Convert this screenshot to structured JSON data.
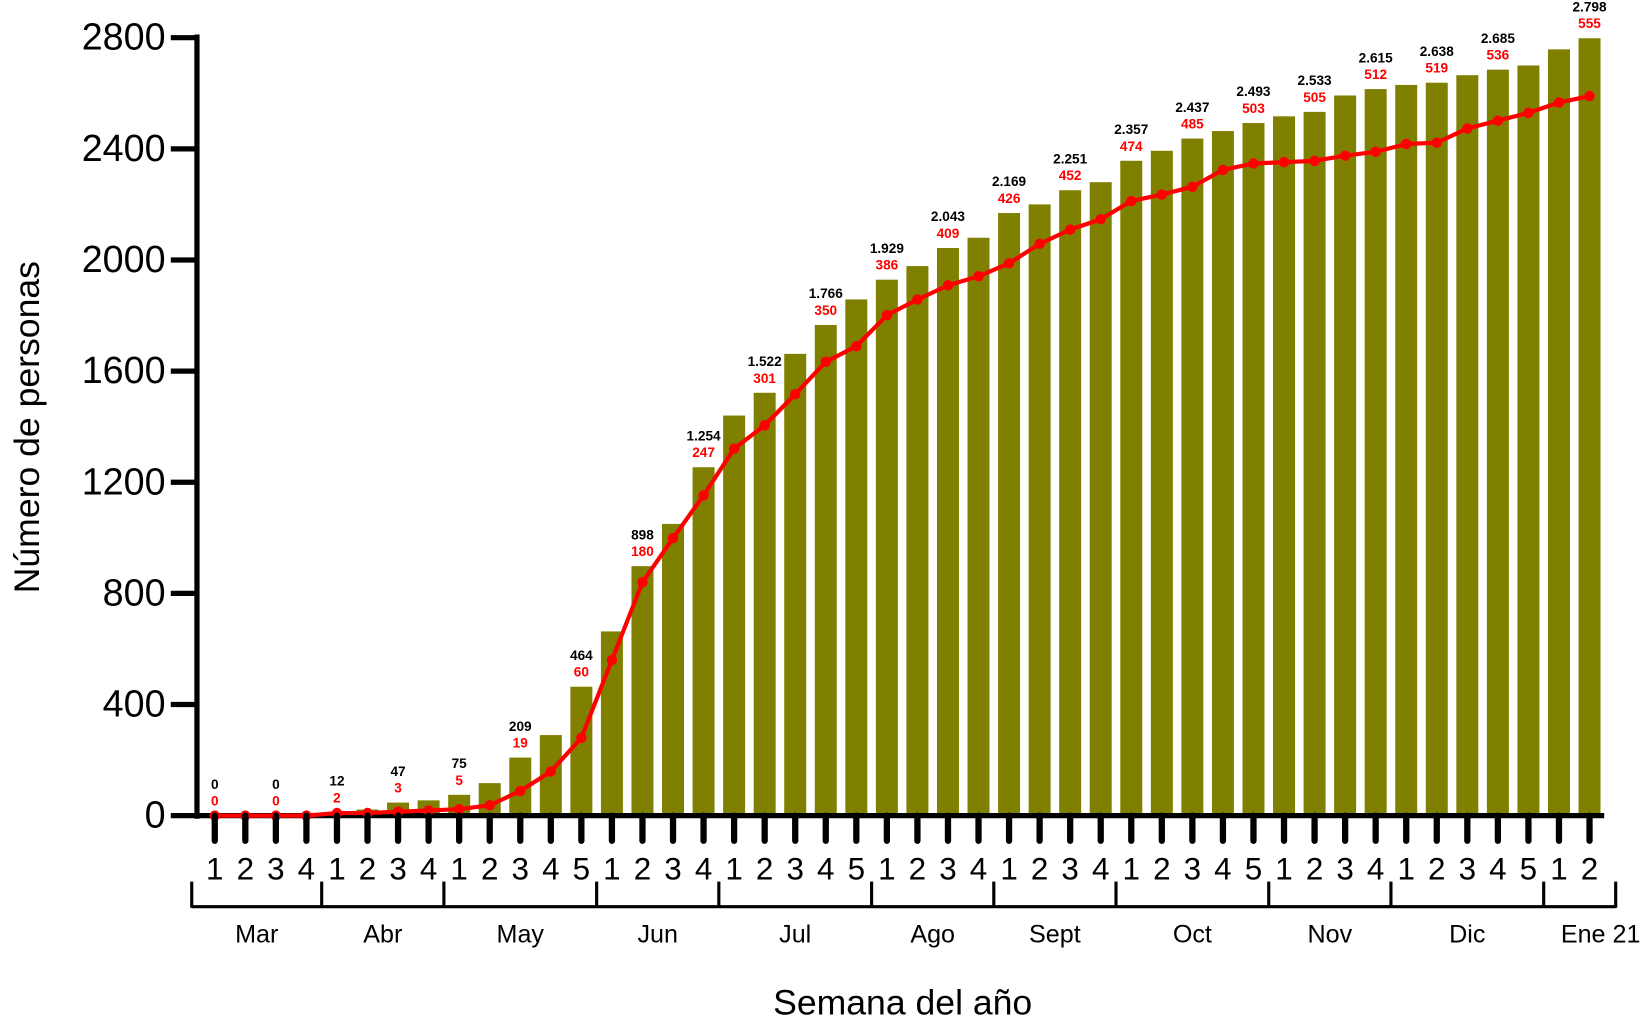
{
  "chart_data": {
    "type": "bar_line",
    "ylabel": "Número de personas",
    "xlabel": "Semana del año",
    "categories": [
      "1",
      "2",
      "3",
      "4",
      "1",
      "2",
      "3",
      "4",
      "1",
      "2",
      "3",
      "4",
      "5",
      "1",
      "2",
      "3",
      "4",
      "1",
      "2",
      "3",
      "4",
      "5",
      "1",
      "2",
      "3",
      "4",
      "1",
      "2",
      "3",
      "4",
      "1",
      "2",
      "3",
      "4",
      "5",
      "1",
      "2",
      "3",
      "4",
      "1",
      "2",
      "3",
      "4",
      "5",
      "1",
      "2"
    ],
    "groups": [
      {
        "label": "Mar",
        "weeks": 4
      },
      {
        "label": "Abr",
        "weeks": 4
      },
      {
        "label": "May",
        "weeks": 5
      },
      {
        "label": "Jun",
        "weeks": 4
      },
      {
        "label": "Jul",
        "weeks": 5
      },
      {
        "label": "Ago",
        "weeks": 4
      },
      {
        "label": "Sept",
        "weeks": 4
      },
      {
        "label": "Oct",
        "weeks": 5
      },
      {
        "label": "Nov",
        "weeks": 4
      },
      {
        "label": "Dic",
        "weeks": 5
      },
      {
        "label": "Ene 21",
        "weeks": 2
      }
    ],
    "series": [
      {
        "color": "#808000",
        "values": [
          0,
          0,
          0,
          0,
          12,
          22,
          47,
          55,
          75,
          117,
          209,
          290,
          464,
          663,
          898,
          1050,
          1254,
          1440,
          1522,
          1662,
          1766,
          1858,
          1929,
          1978,
          2043,
          2080,
          2169,
          2200,
          2251,
          2280,
          2357,
          2393,
          2437,
          2464,
          2493,
          2517,
          2533,
          2592,
          2615,
          2630,
          2638,
          2665,
          2685,
          2700,
          2758,
          2798
        ],
        "value_labels": [
          "0",
          null,
          "0",
          null,
          "12",
          null,
          "47",
          null,
          "75",
          null,
          "209",
          null,
          "464",
          null,
          "898",
          null,
          "1.254",
          null,
          "1.522",
          null,
          "1.766",
          null,
          "1.929",
          null,
          "2.043",
          null,
          "2.169",
          null,
          "2.251",
          null,
          "2.357",
          null,
          "2.437",
          null,
          "2.493",
          null,
          "2.533",
          null,
          "2.615",
          null,
          "2.638",
          null,
          "2.685",
          null,
          null,
          "2.798"
        ]
      },
      {
        "color": "#ff0000",
        "axis": "y2",
        "values": [
          0,
          0,
          0,
          0,
          2,
          2,
          3,
          4,
          5,
          8,
          19,
          34,
          60,
          120,
          180,
          214,
          247,
          283,
          301,
          325,
          350,
          362,
          386,
          398,
          409,
          416,
          426,
          441,
          452,
          460,
          474,
          479,
          485,
          498,
          503,
          504,
          505,
          509,
          512,
          518,
          519,
          530,
          536,
          542,
          550,
          555
        ],
        "value_labels": [
          "0",
          null,
          "0",
          null,
          "2",
          null,
          "3",
          null,
          "5",
          null,
          "19",
          null,
          "60",
          null,
          "180",
          null,
          "247",
          null,
          "301",
          null,
          "350",
          null,
          "386",
          null,
          "409",
          null,
          "426",
          null,
          "452",
          null,
          "474",
          null,
          "485",
          null,
          "503",
          null,
          "505",
          null,
          "512",
          null,
          "519",
          null,
          "536",
          null,
          null,
          "555"
        ]
      }
    ],
    "ylim": [
      0,
      2800
    ],
    "yticks": [
      0,
      400,
      800,
      1200,
      1600,
      2000,
      2400,
      2800
    ],
    "y2lim": [
      0,
      600
    ]
  }
}
